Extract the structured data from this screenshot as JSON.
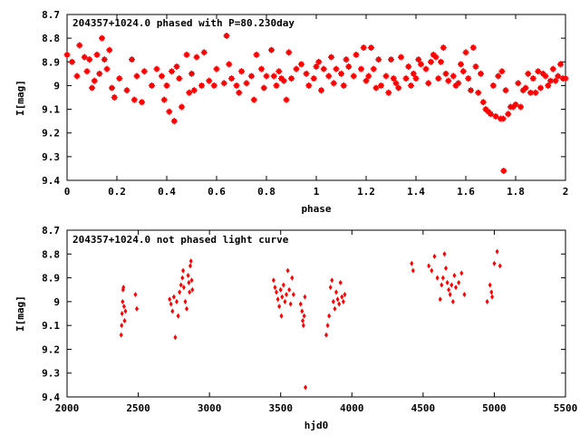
{
  "chart_data": [
    {
      "type": "scatter",
      "title": "204357+1024.0 phased with P=80.230day",
      "xlabel": "phase",
      "ylabel": "I[mag]",
      "xlim": [
        0,
        2
      ],
      "ylim": [
        8.7,
        9.4
      ],
      "y_inverted": true,
      "grid": false,
      "x_ticks": [
        0,
        0.2,
        0.4,
        0.6,
        0.8,
        1,
        1.2,
        1.4,
        1.6,
        1.8,
        2
      ],
      "x_tick_labels": [
        "0",
        "0.2",
        "0.4",
        "0.6",
        "0.8",
        "1",
        "1.2",
        "1.4",
        "1.6",
        "1.8",
        "2"
      ],
      "y_ticks": [
        8.7,
        8.8,
        8.9,
        9.0,
        9.1,
        9.2,
        9.3,
        9.4
      ],
      "y_tick_labels": [
        "8.7",
        "8.8",
        "8.9",
        "9",
        "9.1",
        "9.2",
        "9.3",
        "9.4"
      ],
      "marker": "star",
      "color": "#ff0000",
      "points": [
        [
          0.0,
          8.87
        ],
        [
          0.02,
          8.9
        ],
        [
          0.04,
          8.96
        ],
        [
          0.05,
          8.83
        ],
        [
          0.07,
          8.88
        ],
        [
          0.08,
          8.94
        ],
        [
          0.09,
          8.89
        ],
        [
          0.1,
          9.01
        ],
        [
          0.11,
          8.98
        ],
        [
          0.12,
          8.87
        ],
        [
          0.13,
          8.95
        ],
        [
          0.14,
          8.8
        ],
        [
          0.15,
          8.89
        ],
        [
          0.16,
          8.93
        ],
        [
          0.17,
          8.85
        ],
        [
          0.18,
          9.01
        ],
        [
          0.19,
          9.05
        ],
        [
          0.21,
          8.97
        ],
        [
          0.24,
          9.02
        ],
        [
          0.26,
          8.89
        ],
        [
          0.27,
          9.06
        ],
        [
          0.28,
          8.96
        ],
        [
          0.3,
          9.07
        ],
        [
          0.31,
          8.94
        ],
        [
          0.34,
          9.0
        ],
        [
          0.36,
          8.93
        ],
        [
          0.38,
          8.96
        ],
        [
          0.39,
          9.06
        ],
        [
          0.4,
          9.0
        ],
        [
          0.41,
          9.11
        ],
        [
          0.42,
          8.94
        ],
        [
          0.43,
          9.15
        ],
        [
          0.44,
          8.92
        ],
        [
          0.45,
          8.97
        ],
        [
          0.46,
          9.09
        ],
        [
          0.48,
          8.87
        ],
        [
          0.49,
          9.03
        ],
        [
          0.5,
          8.95
        ],
        [
          0.51,
          9.02
        ],
        [
          0.52,
          8.88
        ],
        [
          0.54,
          9.0
        ],
        [
          0.55,
          8.86
        ],
        [
          0.57,
          8.98
        ],
        [
          0.59,
          9.0
        ],
        [
          0.6,
          8.93
        ],
        [
          0.63,
          8.99
        ],
        [
          0.64,
          8.79
        ],
        [
          0.65,
          8.91
        ],
        [
          0.66,
          8.97
        ],
        [
          0.68,
          9.0
        ],
        [
          0.69,
          9.03
        ],
        [
          0.7,
          8.94
        ],
        [
          0.72,
          8.99
        ],
        [
          0.74,
          8.96
        ],
        [
          0.75,
          9.06
        ],
        [
          0.76,
          8.87
        ],
        [
          0.78,
          8.93
        ],
        [
          0.79,
          9.01
        ],
        [
          0.8,
          8.96
        ],
        [
          0.82,
          8.85
        ],
        [
          0.83,
          8.96
        ],
        [
          0.84,
          9.0
        ],
        [
          0.85,
          8.94
        ],
        [
          0.86,
          8.97
        ],
        [
          0.87,
          8.98
        ],
        [
          0.88,
          9.06
        ],
        [
          0.89,
          8.86
        ],
        [
          0.9,
          8.97
        ],
        [
          0.92,
          8.93
        ],
        [
          0.94,
          8.91
        ],
        [
          0.96,
          8.95
        ],
        [
          0.97,
          9.0
        ],
        [
          0.99,
          8.97
        ],
        [
          1.0,
          8.92
        ],
        [
          1.01,
          8.9
        ],
        [
          1.02,
          9.02
        ],
        [
          1.03,
          8.93
        ],
        [
          1.05,
          8.96
        ],
        [
          1.06,
          8.88
        ],
        [
          1.07,
          8.99
        ],
        [
          1.08,
          8.93
        ],
        [
          1.1,
          8.95
        ],
        [
          1.11,
          9.0
        ],
        [
          1.12,
          8.89
        ],
        [
          1.13,
          8.92
        ],
        [
          1.15,
          8.96
        ],
        [
          1.16,
          8.87
        ],
        [
          1.18,
          8.93
        ],
        [
          1.19,
          8.84
        ],
        [
          1.2,
          8.98
        ],
        [
          1.21,
          8.96
        ],
        [
          1.22,
          8.84
        ],
        [
          1.23,
          8.93
        ],
        [
          1.24,
          9.01
        ],
        [
          1.25,
          8.89
        ],
        [
          1.26,
          9.0
        ],
        [
          1.28,
          8.96
        ],
        [
          1.29,
          9.03
        ],
        [
          1.3,
          8.89
        ],
        [
          1.31,
          8.97
        ],
        [
          1.32,
          8.99
        ],
        [
          1.33,
          9.01
        ],
        [
          1.34,
          8.88
        ],
        [
          1.36,
          8.97
        ],
        [
          1.37,
          8.92
        ],
        [
          1.38,
          9.0
        ],
        [
          1.39,
          8.95
        ],
        [
          1.4,
          8.97
        ],
        [
          1.41,
          8.89
        ],
        [
          1.42,
          8.91
        ],
        [
          1.44,
          8.93
        ],
        [
          1.45,
          8.99
        ],
        [
          1.46,
          8.9
        ],
        [
          1.47,
          8.87
        ],
        [
          1.48,
          8.88
        ],
        [
          1.49,
          8.97
        ],
        [
          1.5,
          8.9
        ],
        [
          1.51,
          8.84
        ],
        [
          1.52,
          8.95
        ],
        [
          1.53,
          8.98
        ],
        [
          1.55,
          8.96
        ],
        [
          1.56,
          9.0
        ],
        [
          1.57,
          8.99
        ],
        [
          1.58,
          8.91
        ],
        [
          1.59,
          8.94
        ],
        [
          1.6,
          8.86
        ],
        [
          1.61,
          8.97
        ],
        [
          1.62,
          9.02
        ],
        [
          1.63,
          8.84
        ],
        [
          1.64,
          8.92
        ],
        [
          1.65,
          9.03
        ],
        [
          1.66,
          8.95
        ],
        [
          1.67,
          9.07
        ],
        [
          1.68,
          9.1
        ],
        [
          1.69,
          9.11
        ],
        [
          1.7,
          9.12
        ],
        [
          1.71,
          9.0
        ],
        [
          1.72,
          9.13
        ],
        [
          1.73,
          8.96
        ],
        [
          1.74,
          9.14
        ],
        [
          1.745,
          8.94
        ],
        [
          1.75,
          9.14
        ],
        [
          1.752,
          9.36
        ],
        [
          1.76,
          9.02
        ],
        [
          1.77,
          9.12
        ],
        [
          1.78,
          9.09
        ],
        [
          1.79,
          9.09
        ],
        [
          1.8,
          9.08
        ],
        [
          1.81,
          8.99
        ],
        [
          1.82,
          9.09
        ],
        [
          1.83,
          9.02
        ],
        [
          1.84,
          9.01
        ],
        [
          1.85,
          8.95
        ],
        [
          1.86,
          9.03
        ],
        [
          1.87,
          8.97
        ],
        [
          1.88,
          9.03
        ],
        [
          1.89,
          8.94
        ],
        [
          1.9,
          9.01
        ],
        [
          1.91,
          8.95
        ],
        [
          1.92,
          8.96
        ],
        [
          1.93,
          9.0
        ],
        [
          1.94,
          8.98
        ],
        [
          1.95,
          8.93
        ],
        [
          1.96,
          8.98
        ],
        [
          1.97,
          8.96
        ],
        [
          1.98,
          8.91
        ],
        [
          1.99,
          8.97
        ],
        [
          2.0,
          8.97
        ]
      ]
    },
    {
      "type": "scatter",
      "title": "204357+1024.0 not phased light curve",
      "xlabel": "hjd0",
      "ylabel": "I[mag]",
      "xlim": [
        2000,
        5500
      ],
      "ylim": [
        8.7,
        9.4
      ],
      "y_inverted": true,
      "grid": false,
      "x_ticks": [
        2000,
        2500,
        3000,
        3500,
        4000,
        4500,
        5000,
        5500
      ],
      "x_tick_labels": [
        "2000",
        "2500",
        "3000",
        "3500",
        "4000",
        "4500",
        "5000",
        "5500"
      ],
      "y_ticks": [
        8.7,
        8.8,
        8.9,
        9.0,
        9.1,
        9.2,
        9.3,
        9.4
      ],
      "y_tick_labels": [
        "8.7",
        "8.8",
        "8.9",
        "9",
        "9.1",
        "9.2",
        "9.3",
        "9.4"
      ],
      "marker": "diamond",
      "color": "#ff0000",
      "points": [
        [
          2380,
          9.14
        ],
        [
          2383,
          9.1
        ],
        [
          2386,
          9.05
        ],
        [
          2390,
          9.0
        ],
        [
          2393,
          8.95
        ],
        [
          2396,
          8.94
        ],
        [
          2400,
          9.02
        ],
        [
          2404,
          9.08
        ],
        [
          2410,
          9.04
        ],
        [
          2480,
          8.97
        ],
        [
          2490,
          9.03
        ],
        [
          2720,
          8.99
        ],
        [
          2730,
          9.01
        ],
        [
          2740,
          9.04
        ],
        [
          2750,
          8.98
        ],
        [
          2760,
          9.15
        ],
        [
          2770,
          9.0
        ],
        [
          2780,
          9.06
        ],
        [
          2790,
          8.96
        ],
        [
          2800,
          8.93
        ],
        [
          2810,
          8.9
        ],
        [
          2815,
          8.87
        ],
        [
          2820,
          8.94
        ],
        [
          2830,
          9.0
        ],
        [
          2840,
          9.03
        ],
        [
          2850,
          8.89
        ],
        [
          2855,
          8.92
        ],
        [
          2860,
          8.96
        ],
        [
          2865,
          8.85
        ],
        [
          2870,
          8.83
        ],
        [
          2875,
          8.91
        ],
        [
          2880,
          8.95
        ],
        [
          3450,
          8.91
        ],
        [
          3460,
          8.94
        ],
        [
          3470,
          8.96
        ],
        [
          3480,
          8.99
        ],
        [
          3490,
          9.02
        ],
        [
          3500,
          8.95
        ],
        [
          3505,
          9.06
        ],
        [
          3510,
          8.98
        ],
        [
          3520,
          8.93
        ],
        [
          3530,
          9.0
        ],
        [
          3540,
          8.97
        ],
        [
          3550,
          8.87
        ],
        [
          3560,
          8.95
        ],
        [
          3570,
          9.01
        ],
        [
          3580,
          8.9
        ],
        [
          3590,
          8.97
        ],
        [
          3640,
          9.01
        ],
        [
          3650,
          9.04
        ],
        [
          3655,
          9.08
        ],
        [
          3660,
          9.1
        ],
        [
          3665,
          9.06
        ],
        [
          3670,
          8.98
        ],
        [
          3674,
          9.36
        ],
        [
          3820,
          9.14
        ],
        [
          3830,
          9.1
        ],
        [
          3840,
          9.06
        ],
        [
          3850,
          8.94
        ],
        [
          3860,
          8.91
        ],
        [
          3870,
          9.0
        ],
        [
          3880,
          9.03
        ],
        [
          3890,
          8.96
        ],
        [
          3900,
          8.99
        ],
        [
          3910,
          9.01
        ],
        [
          3920,
          8.92
        ],
        [
          3930,
          8.98
        ],
        [
          3940,
          9.0
        ],
        [
          3950,
          8.97
        ],
        [
          4420,
          8.84
        ],
        [
          4430,
          8.87
        ],
        [
          4540,
          8.85
        ],
        [
          4560,
          8.87
        ],
        [
          4580,
          8.81
        ],
        [
          4600,
          8.9
        ],
        [
          4620,
          8.99
        ],
        [
          4630,
          8.93
        ],
        [
          4640,
          8.9
        ],
        [
          4650,
          8.8
        ],
        [
          4660,
          8.86
        ],
        [
          4670,
          8.92
        ],
        [
          4680,
          8.95
        ],
        [
          4690,
          8.97
        ],
        [
          4700,
          8.93
        ],
        [
          4710,
          9.0
        ],
        [
          4720,
          8.89
        ],
        [
          4730,
          8.94
        ],
        [
          4750,
          8.92
        ],
        [
          4770,
          8.88
        ],
        [
          4790,
          8.97
        ],
        [
          4950,
          9.0
        ],
        [
          4970,
          8.93
        ],
        [
          4980,
          8.96
        ],
        [
          4985,
          8.98
        ],
        [
          5000,
          8.84
        ],
        [
          5020,
          8.79
        ],
        [
          5040,
          8.85
        ]
      ]
    }
  ]
}
